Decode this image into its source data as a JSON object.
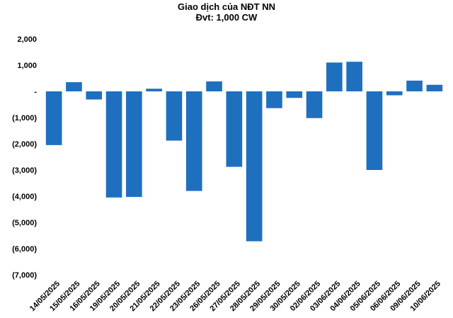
{
  "chart_data": {
    "type": "bar",
    "title": "Giao dịch của NĐT NN",
    "subtitle": "Đvt: 1,000 CW",
    "xlabel": "",
    "ylabel": "",
    "ylim": [
      -7000,
      2000
    ],
    "yticks": [
      2000,
      1000,
      0,
      -1000,
      -2000,
      -3000,
      -4000,
      -5000,
      -6000,
      -7000
    ],
    "ytick_labels": [
      "2,000",
      "1,000",
      "-",
      "(1,000)",
      "(2,000)",
      "(3,000)",
      "(4,000)",
      "(5,000)",
      "(6,000)",
      "(7,000)"
    ],
    "grid": false,
    "legend": "none",
    "bar_color": "#1F6FBF",
    "categories": [
      "14/05/2025",
      "15/05/2025",
      "16/05/2025",
      "19/05/2025",
      "20/05/2025",
      "21/05/2025",
      "22/05/2025",
      "23/05/2025",
      "26/05/2025",
      "27/05/2025",
      "28/05/2025",
      "29/05/2025",
      "30/05/2025",
      "02/06/2025",
      "03/06/2025",
      "04/06/2025",
      "05/06/2025",
      "06/06/2025",
      "09/06/2025",
      "10/06/2025"
    ],
    "values": [
      -2050,
      350,
      -310,
      -4050,
      -4030,
      100,
      -1880,
      -3800,
      380,
      -2880,
      -5720,
      -640,
      -250,
      -1020,
      1100,
      1130,
      -3000,
      -150,
      410,
      250
    ]
  }
}
